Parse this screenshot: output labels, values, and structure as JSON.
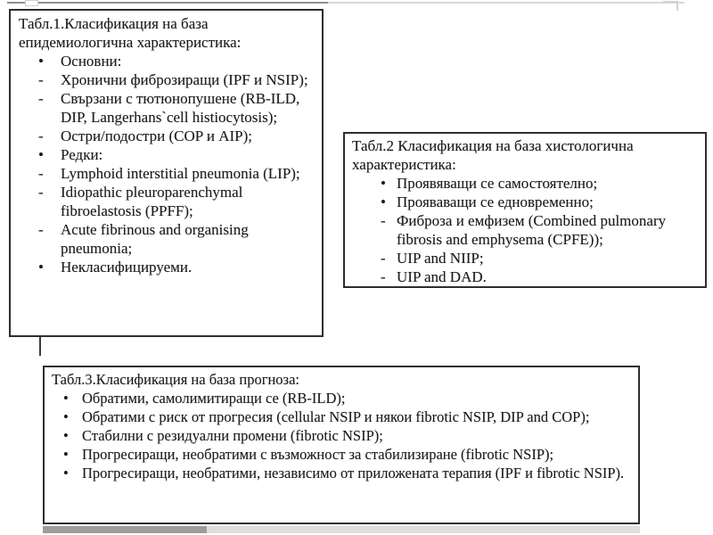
{
  "colors": {
    "box_border": "#2e2e2e",
    "text": "#1c1c1c",
    "scan_line_dark": "#8f8f8f",
    "scan_line_light": "#d8d8d8",
    "bottom_strip_dark": "#9c9c9c",
    "bottom_strip_light": "#dedede"
  },
  "boxes": [
    {
      "id": "table1",
      "title": "Табл.1.Класификация на база епидемиологична характеристика:",
      "items": [
        {
          "marker": "•",
          "text": "Основни:"
        },
        {
          "marker": "-",
          "text": "Хронични фиброзиращи (IPF и NSIP);"
        },
        {
          "marker": "-",
          "text": "Свързани с тютюнопушене (RB-ILD, DIP, Langerhans`cell histiocytosis);"
        },
        {
          "marker": "-",
          "text": "Остри/подостри (COP и AIP);"
        },
        {
          "marker": "•",
          "text": "Редки:"
        },
        {
          "marker": "-",
          "text": "Lymphoid interstitial pneumonia (LIP);"
        },
        {
          "marker": "-",
          "text": "Idiopathic pleuroparenchymal fibroelastosis (PPFF);"
        },
        {
          "marker": "-",
          "text": "Acute fibrinous and organising pneumonia;"
        },
        {
          "marker": "•",
          "text": "Некласифицируеми."
        }
      ]
    },
    {
      "id": "table2",
      "title": "Табл.2 Класификация на база хистологична характеристика:",
      "items": [
        {
          "marker": "•",
          "text": "Проявяващи се самостоятелно;"
        },
        {
          "marker": "•",
          "text": "Прояваващи се едновременно;"
        },
        {
          "marker": "-",
          "text": "Фиброза и емфизем (Combined pulmonary fibrosis and emphysema (CPFE));"
        },
        {
          "marker": "-",
          "text": "UIP and NIIP;"
        },
        {
          "marker": "-",
          "text": "UIP and DAD."
        }
      ]
    },
    {
      "id": "table3",
      "title": "Табл.3.Класификация на база прогноза:",
      "items": [
        {
          "marker": "•",
          "text": "Обратими, самолимитиращи се (RB-ILD);"
        },
        {
          "marker": "•",
          "text": "Обратими с риск от прогресия (cellular NSIP и някои fibrotic NSIP, DIP and COP);"
        },
        {
          "marker": "•",
          "text": "Стабилни с резидуални промени (fibrotic NSIP);"
        },
        {
          "marker": "•",
          "text": "Прогресиращи, необратими с възможност за стабилизиране (fibrotic NSIP);"
        },
        {
          "marker": "•",
          "text": "Прогресиращи, необратими, независимо от приложената терапия (IPF и fibrotic NSIP)."
        }
      ]
    }
  ]
}
